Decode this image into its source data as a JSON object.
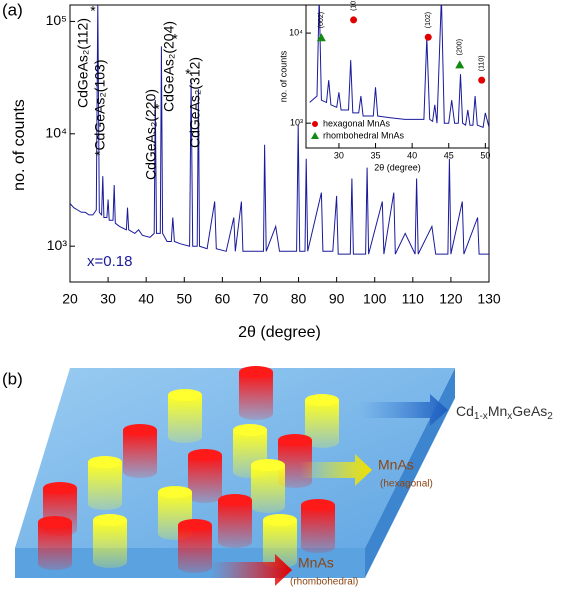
{
  "panel_labels": [
    "(a)",
    "(b)"
  ],
  "chart_data": [
    {
      "type": "line",
      "xlabel": "2θ (degree)",
      "ylabel": "no. of counts",
      "log_scale": true,
      "xlim": [
        20,
        130
      ],
      "xticks": [
        20,
        30,
        40,
        50,
        60,
        70,
        80,
        90,
        100,
        110,
        120,
        130
      ],
      "ylim": [
        480,
        140000
      ],
      "yticks": [
        {
          "value": 1000,
          "label": "10³"
        },
        {
          "value": 10000,
          "label": "10⁴"
        },
        {
          "value": 100000,
          "label": "10⁵"
        }
      ],
      "annotations": [
        "CdGeAs₂(112)",
        "*",
        "*CdGeAs₂(103)",
        "CdGeAs₂(220)",
        "*",
        "CdGeAs₂(204)",
        "*",
        "CdGeAs₂(312)",
        "*",
        "x=0.18"
      ],
      "series": [
        {
          "color": "#1a1a9c",
          "x": [
            20,
            21,
            22,
            23,
            24,
            25,
            26,
            26.9,
            27.3,
            27.7,
            28.3,
            28.6,
            28.9,
            29.7,
            30,
            30.3,
            31.3,
            31.6,
            31.9,
            33,
            34.8,
            35.1,
            35.4,
            37,
            38,
            39,
            41,
            42.1,
            42.4,
            42.7,
            43.7,
            44,
            44.3,
            45.5,
            46.6,
            47,
            47.4,
            49,
            51.4,
            51.8,
            52.2,
            53.4,
            53.7,
            54,
            56,
            58,
            58.4,
            61,
            63,
            63.4,
            65,
            65.4,
            68,
            70.8,
            71.1,
            71.5,
            74,
            75,
            79.5,
            79.9,
            80.3,
            81.7,
            82,
            82.4,
            86,
            86.4,
            89,
            90,
            90.4,
            93.6,
            94,
            94.4,
            97.6,
            98,
            98.4,
            102,
            102.4,
            105,
            105.4,
            108,
            110.6,
            111,
            111.4,
            115,
            116,
            119.2,
            119.6,
            120,
            123,
            123.4,
            127,
            127.4,
            130
          ],
          "values": [
            2400,
            2200,
            2100,
            2000,
            2000,
            1900,
            1900,
            2100,
            150000,
            2000,
            1900,
            4200,
            1800,
            1800,
            2600,
            1700,
            1700,
            3500,
            1600,
            1500,
            1400,
            2200,
            1400,
            1300,
            1400,
            1250,
            1200,
            1300,
            20000,
            1300,
            1300,
            60000,
            1300,
            1100,
            1100,
            1800,
            1100,
            1050,
            1000,
            30000,
            1000,
            1000,
            25000,
            1000,
            950,
            2500,
            950,
            900,
            1800,
            900,
            2500,
            900,
            900,
            900,
            8000,
            900,
            1500,
            900,
            900,
            12000,
            900,
            900,
            6000,
            900,
            3000,
            900,
            900,
            2800,
            850,
            850,
            4000,
            850,
            850,
            5000,
            850,
            2500,
            850,
            3000,
            850,
            1300,
            850,
            4000,
            850,
            1500,
            850,
            850,
            6000,
            850,
            2500,
            850,
            1800,
            850,
            850
          ]
        }
      ]
    },
    {
      "type": "line",
      "xlabel": "2θ (degree)",
      "ylabel": "no. of counts",
      "log_scale": true,
      "xlim": [
        25.5,
        50.5
      ],
      "xticks": [
        30,
        35,
        40,
        45,
        50
      ],
      "ylim": [
        530,
        20500
      ],
      "yticks": [
        {
          "value": 1000,
          "label": "10³"
        },
        {
          "value": 10000,
          "label": "10⁴"
        }
      ],
      "series": [
        {
          "color": "#1a1a9c",
          "x": [
            26,
            27,
            27.3,
            27.6,
            28.3,
            28.6,
            28.9,
            29.7,
            30,
            30.3,
            31.3,
            31.6,
            31.9,
            32.7,
            33,
            33.3,
            34.7,
            35,
            35.3,
            37,
            39,
            41.6,
            42,
            42.4,
            42.8,
            43.1,
            43.4,
            44,
            44.4,
            45,
            45.4,
            45.8,
            46.3,
            46.6,
            46.9,
            47.3,
            47.6,
            47.9,
            48.3,
            48.6,
            48.9,
            49.7,
            50,
            50.5
          ],
          "values": [
            1700,
            2000,
            25000,
            1800,
            1700,
            3000,
            1600,
            1500,
            2200,
            1400,
            1400,
            5000,
            1300,
            1300,
            2000,
            1200,
            1200,
            2500,
            1200,
            1150,
            1100,
            1100,
            9000,
            1100,
            1050,
            1600,
            1000,
            25000,
            1000,
            1000,
            1800,
            1000,
            1000,
            3500,
            1000,
            950,
            1400,
            950,
            950,
            2000,
            950,
            900,
            1300,
            900
          ]
        },
        {
          "name": "hexagonal MnAs",
          "color": "#e00000",
          "marker": "circle",
          "x": [
            32,
            42.2,
            49.5
          ],
          "values": [
            14000,
            9000,
            3000
          ],
          "point_labels": [
            "(101)",
            "(102)",
            "(110)"
          ]
        },
        {
          "name": "rhombohedral MnAs",
          "color": "#108a10",
          "marker": "triangle",
          "x": [
            27.6,
            46.5
          ],
          "values": [
            9000,
            4500
          ],
          "point_labels": [
            "(002)",
            "(200)"
          ]
        }
      ]
    }
  ],
  "diagram": {
    "formula_parts": [
      "Cd",
      "1-x",
      "Mn",
      "x",
      "GeAs",
      "2"
    ],
    "hexagonal": {
      "label": "MnAs",
      "sub": "(hexagonal)"
    },
    "rhombohedral": {
      "label": "MnAs",
      "sub": "(rhombohedral)"
    }
  }
}
